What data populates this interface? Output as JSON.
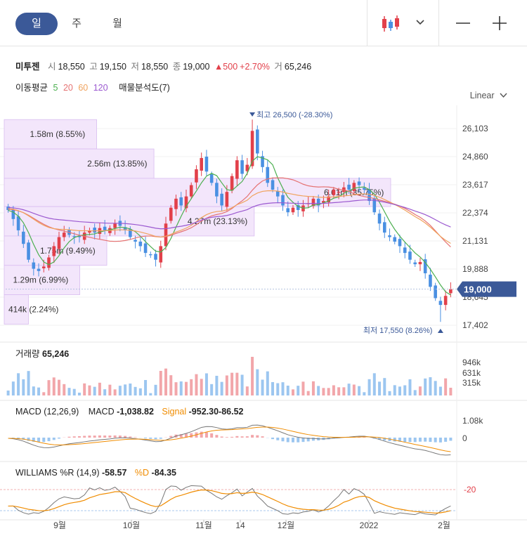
{
  "tabs": {
    "day": "일",
    "week": "주",
    "month": "월"
  },
  "colors": {
    "up": "#e2404a",
    "down": "#4a90e2",
    "ma5": "#4caf50",
    "ma20": "#e57373",
    "ma60": "#f0a35e",
    "ma120": "#9b59d0",
    "accent": "#3b5998",
    "signal": "#f08c00"
  },
  "stock": {
    "name": "미투젠",
    "open_label": "시",
    "open": "18,550",
    "high_label": "고",
    "high": "19,150",
    "low_label": "저",
    "low": "18,550",
    "close_label": "종",
    "close": "19,000",
    "change": "▲500",
    "change_pct": "+2.70%",
    "volume_label": "거",
    "volume": "65,246"
  },
  "ma": {
    "label": "이동평균",
    "p5": "5",
    "p20": "20",
    "p60": "60",
    "p120": "120",
    "profile": "매물분석도(7)"
  },
  "scale_button": "Linear",
  "chart_data": [
    {
      "type": "candlestick",
      "price_ticks": [
        "26,103",
        "24,860",
        "23,617",
        "22,374",
        "21,131",
        "19,888",
        "18,645",
        "17,402"
      ],
      "ylim": [
        17402,
        26103
      ],
      "current_price": "19,000",
      "high_marker": "최고 26,500 (-28.30%)",
      "low_marker": "최저 17,550 (8.26%)",
      "x_labels": [
        "9월",
        "10월",
        "11월",
        "14",
        "12월",
        "2022",
        "2월"
      ],
      "volume_profile": [
        {
          "label": "1.58m (8.55%)",
          "price_low": 25200,
          "price_high": 26500,
          "share": 8.55
        },
        {
          "label": "2.56m (13.85%)",
          "price_low": 23900,
          "price_high": 25200,
          "share": 13.85
        },
        {
          "label": "6.61m (35.75%)",
          "price_low": 22650,
          "price_high": 23900,
          "share": 35.75
        },
        {
          "label": "4.27m (23.13%)",
          "price_low": 21350,
          "price_high": 22650,
          "share": 23.13
        },
        {
          "label": "1.75m (9.49%)",
          "price_low": 20050,
          "price_high": 21350,
          "share": 9.49
        },
        {
          "label": "1.29m (6.99%)",
          "price_low": 18750,
          "price_high": 20050,
          "share": 6.99
        },
        {
          "label": "414k (2.24%)",
          "price_low": 17450,
          "price_high": 18750,
          "share": 2.24
        }
      ],
      "close_path": [
        22500,
        22100,
        21600,
        21000,
        20300,
        19900,
        19800,
        20000,
        20400,
        20900,
        21300,
        21500,
        21400,
        21300,
        21300,
        21500,
        21600,
        21500,
        21700,
        21600,
        21700,
        21900,
        21800,
        21600,
        21300,
        21100,
        20900,
        20600,
        20500,
        20300,
        20900,
        21900,
        22600,
        23000,
        22700,
        23100,
        23600,
        24300,
        24800,
        24200,
        23700,
        23100,
        22700,
        23300,
        24000,
        24700,
        24100,
        24500,
        26000,
        25000,
        24400,
        23700,
        23400,
        23100,
        22700,
        22400,
        22600,
        22500,
        22700,
        22800,
        23000,
        22700,
        22900,
        23100,
        23400,
        23300,
        23500,
        23400,
        23700,
        23600,
        23400,
        22900,
        22400,
        21900,
        21500,
        21300,
        21100,
        20900,
        20600,
        20300,
        20100,
        20200,
        19700,
        19100,
        18600,
        18300,
        18700,
        19000
      ]
    },
    {
      "type": "bar",
      "title": "거래량",
      "value": "65,246",
      "y_ticks": [
        "946k",
        "631k",
        "315k"
      ]
    },
    {
      "type": "line",
      "title": "MACD (12,26,9)",
      "macd_label": "MACD",
      "macd_value": "-1,038.82",
      "signal_label": "Signal",
      "signal_value": "-952.30",
      "hist_value": "-86.52",
      "y_ticks": [
        "1.08k",
        "0"
      ]
    },
    {
      "type": "line",
      "title": "WILLIAMS %R (14,9)",
      "value": "-58.57",
      "d_label": "%D",
      "d_value": "-84.35",
      "y_ticks": [
        "-20"
      ]
    }
  ]
}
